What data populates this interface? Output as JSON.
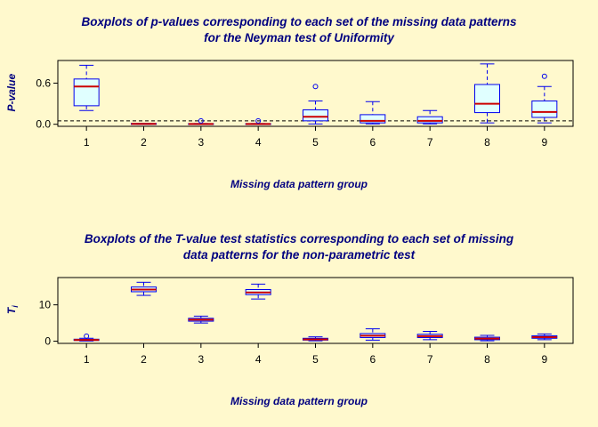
{
  "figure": {
    "background": "#FFF9CD",
    "title_color": "#000080"
  },
  "chart_data": [
    {
      "type": "boxplot",
      "title": "Boxplots of p-values corresponding to each set of the missing data patterns for the Neyman test of Uniformity",
      "title_lines": [
        "Boxplots of p-values corresponding to each set of the missing data patterns",
        "for the Neyman test of Uniformity"
      ],
      "xlabel": "Missing data pattern group",
      "ylabel": "P-value",
      "ylabel_sub": "",
      "ylim": [
        -0.03,
        0.93
      ],
      "yticks": [
        0,
        0.6
      ],
      "ytick_labels": [
        "0.0",
        "0.6"
      ],
      "refline": 0.05,
      "categories": [
        "1",
        "2",
        "3",
        "4",
        "5",
        "6",
        "7",
        "8",
        "9"
      ],
      "box_fill": "#E0FFFF",
      "box_stroke": "#0000EE",
      "median_color": "#CC0000",
      "boxes": [
        {
          "low": 0.2,
          "q1": 0.27,
          "med": 0.55,
          "q3": 0.66,
          "high": 0.86,
          "outliers": []
        },
        {
          "low": 0.0,
          "q1": 0.0,
          "med": 0.005,
          "q3": 0.012,
          "high": 0.012,
          "outliers": []
        },
        {
          "low": 0.0,
          "q1": 0.0,
          "med": 0.004,
          "q3": 0.01,
          "high": 0.01,
          "outliers": [
            0.05
          ]
        },
        {
          "low": 0.0,
          "q1": 0.0,
          "med": 0.004,
          "q3": 0.01,
          "high": 0.01,
          "outliers": [
            0.05
          ]
        },
        {
          "low": 0.005,
          "q1": 0.05,
          "med": 0.11,
          "q3": 0.21,
          "high": 0.34,
          "outliers": [
            0.55
          ]
        },
        {
          "low": 0.005,
          "q1": 0.02,
          "med": 0.05,
          "q3": 0.14,
          "high": 0.33,
          "outliers": []
        },
        {
          "low": 0.005,
          "q1": 0.02,
          "med": 0.05,
          "q3": 0.11,
          "high": 0.2,
          "outliers": []
        },
        {
          "low": 0.02,
          "q1": 0.17,
          "med": 0.3,
          "q3": 0.58,
          "high": 0.88,
          "outliers": []
        },
        {
          "low": 0.02,
          "q1": 0.1,
          "med": 0.18,
          "q3": 0.34,
          "high": 0.55,
          "outliers": [
            0.7
          ]
        }
      ]
    },
    {
      "type": "boxplot",
      "title": "Boxplots of the T-value test statistics corresponding to each set of missing data patterns for the non-parametric test",
      "title_lines": [
        "Boxplots of the T-value test statistics corresponding to each set of missing",
        "data patterns for the non-parametric test"
      ],
      "xlabel": "Missing data pattern group",
      "ylabel": "T",
      "ylabel_sub": "i",
      "ylim": [
        -0.6,
        17.5
      ],
      "yticks": [
        0,
        10
      ],
      "ytick_labels": [
        "0",
        "10"
      ],
      "refline": null,
      "categories": [
        "1",
        "2",
        "3",
        "4",
        "5",
        "6",
        "7",
        "8",
        "9"
      ],
      "box_fill": "#E0FFFF",
      "box_stroke": "#0000EE",
      "median_color": "#CC0000",
      "boxes": [
        {
          "low": 0.05,
          "q1": 0.2,
          "med": 0.35,
          "q3": 0.55,
          "high": 0.8,
          "outliers": [
            1.4
          ]
        },
        {
          "low": 12.6,
          "q1": 13.6,
          "med": 14.2,
          "q3": 14.9,
          "high": 16.2,
          "outliers": []
        },
        {
          "low": 5.0,
          "q1": 5.5,
          "med": 5.9,
          "q3": 6.3,
          "high": 6.9,
          "outliers": []
        },
        {
          "low": 11.6,
          "q1": 12.8,
          "med": 13.4,
          "q3": 14.2,
          "high": 15.7,
          "outliers": []
        },
        {
          "low": 0.1,
          "q1": 0.3,
          "med": 0.5,
          "q3": 0.8,
          "high": 1.2,
          "outliers": []
        },
        {
          "low": 0.3,
          "q1": 1.0,
          "med": 1.5,
          "q3": 2.1,
          "high": 3.4,
          "outliers": []
        },
        {
          "low": 0.4,
          "q1": 1.0,
          "med": 1.4,
          "q3": 1.9,
          "high": 2.7,
          "outliers": []
        },
        {
          "low": 0.1,
          "q1": 0.4,
          "med": 0.7,
          "q3": 1.1,
          "high": 1.6,
          "outliers": []
        },
        {
          "low": 0.4,
          "q1": 0.8,
          "med": 1.1,
          "q3": 1.5,
          "high": 2.0,
          "outliers": []
        }
      ]
    }
  ]
}
